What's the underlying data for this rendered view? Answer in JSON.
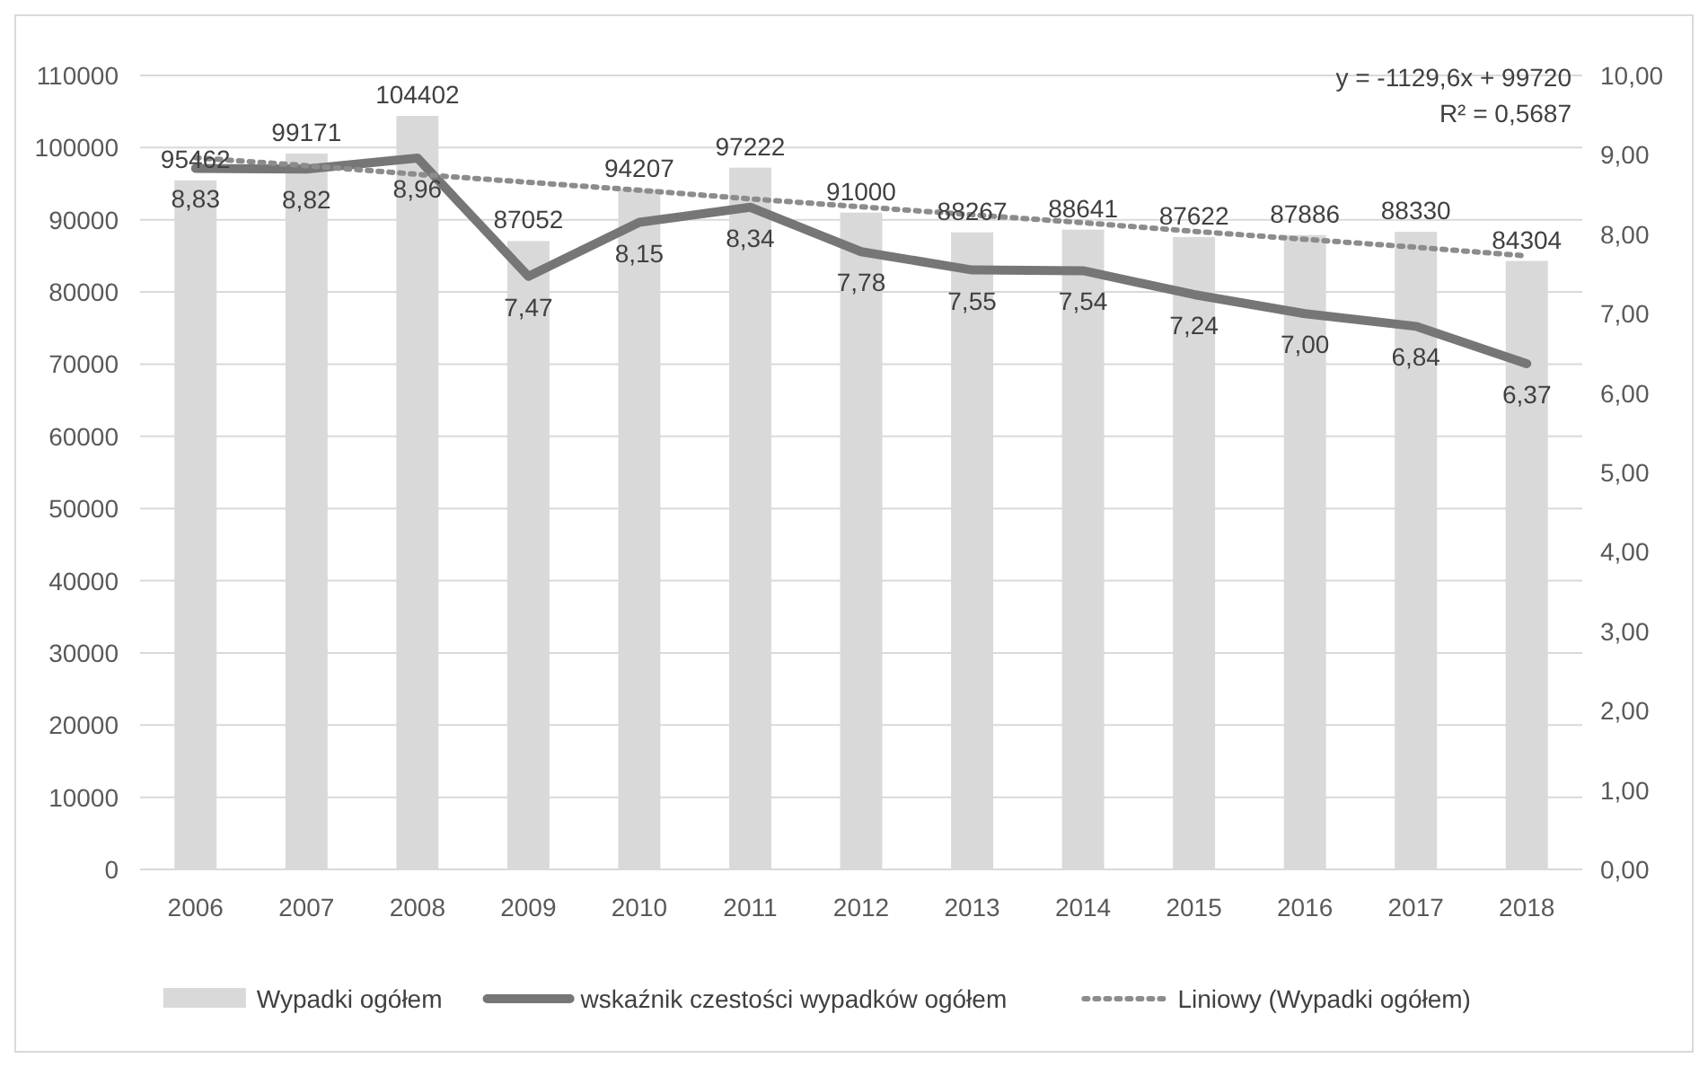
{
  "chart_data": {
    "type": "bar",
    "categories": [
      "2006",
      "2007",
      "2008",
      "2009",
      "2010",
      "2011",
      "2012",
      "2013",
      "2014",
      "2015",
      "2016",
      "2017",
      "2018"
    ],
    "series": [
      {
        "name": "Wypadki ogółem",
        "color": "#d9d9d9",
        "values": [
          95462,
          99171,
          104402,
          87052,
          94207,
          97222,
          91000,
          88267,
          88641,
          87622,
          87886,
          88330,
          84304
        ],
        "value_labels": [
          "95462",
          "99171",
          "104402",
          "87052",
          "94207",
          "97222",
          "91000",
          "88267",
          "88641",
          "87622",
          "87886",
          "88330",
          "84304"
        ]
      },
      {
        "name": "wskaźnik czestości wypadków ogółem",
        "type": "line",
        "axis": "y2",
        "color": "#767676",
        "values": [
          8.83,
          8.82,
          8.96,
          7.47,
          8.15,
          8.34,
          7.78,
          7.55,
          7.54,
          7.24,
          7.0,
          6.84,
          6.37
        ],
        "value_labels": [
          "8,83",
          "8,82",
          "8,96",
          "7,47",
          "8,15",
          "8,34",
          "7,78",
          "7,55",
          "7,54",
          "7,24",
          "7,00",
          "6,84",
          "6,37"
        ]
      },
      {
        "name": "Liniowy (Wypadki ogółem)",
        "type": "line",
        "line_style": "dotted",
        "color": "#8c8c8c",
        "values": [
          98600,
          97500,
          96300,
          95200,
          94100,
          92900,
          91800,
          90700,
          89600,
          88400,
          87300,
          86200,
          85000
        ]
      }
    ],
    "ylim": [
      0,
      110000
    ],
    "yticks": [
      0,
      10000,
      20000,
      30000,
      40000,
      50000,
      60000,
      70000,
      80000,
      90000,
      100000,
      110000
    ],
    "y2lim": [
      0,
      10
    ],
    "y2ticks": [
      {
        "value": 0,
        "label": "0,00"
      },
      {
        "value": 1,
        "label": "1,00"
      },
      {
        "value": 2,
        "label": "2,00"
      },
      {
        "value": 3,
        "label": "3,00"
      },
      {
        "value": 4,
        "label": "4,00"
      },
      {
        "value": 5,
        "label": "5,00"
      },
      {
        "value": 6,
        "label": "6,00"
      },
      {
        "value": 7,
        "label": "7,00"
      },
      {
        "value": 8,
        "label": "8,00"
      },
      {
        "value": 9,
        "label": "9,00"
      },
      {
        "value": 10,
        "label": "10,00"
      }
    ],
    "annotations": [
      "y = -1129,6x + 99720",
      "R² = 0,5687"
    ],
    "grid": "y",
    "legend": "bottom"
  }
}
